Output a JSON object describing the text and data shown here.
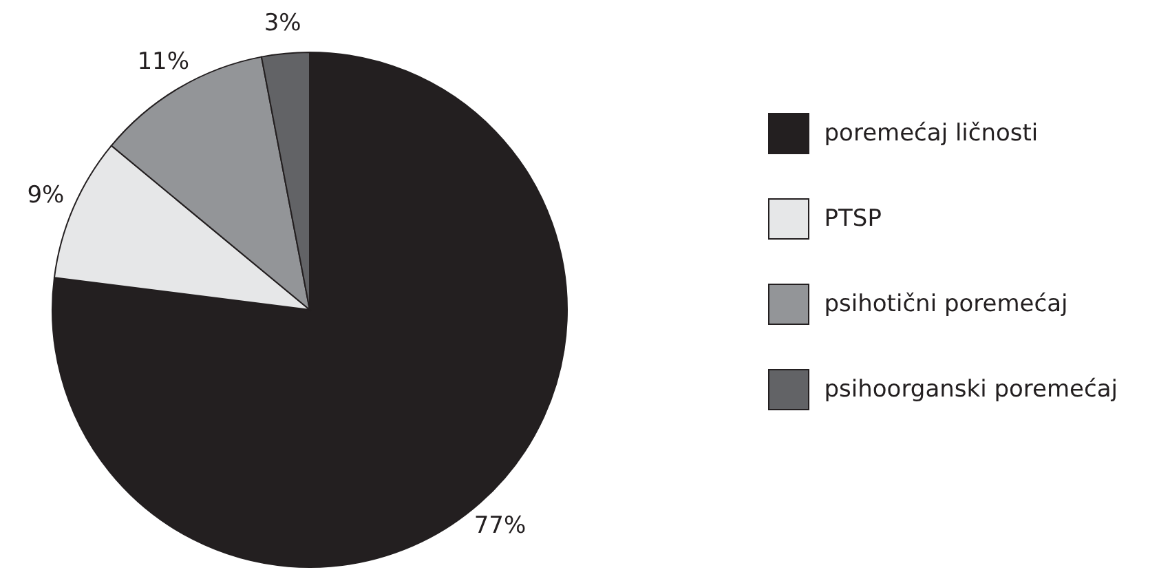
{
  "chart_data": {
    "type": "pie",
    "categories": [
      "poremećaj ličnosti",
      "PTSP",
      "psihotični poremećaj",
      "psihoorganski poremećaj"
    ],
    "values": [
      77,
      9,
      11,
      3
    ],
    "colors": [
      "#231f20",
      "#e6e7e8",
      "#939598",
      "#626366"
    ],
    "value_labels": [
      "77%",
      "9%",
      "11%",
      "3%"
    ],
    "legend": "right"
  }
}
